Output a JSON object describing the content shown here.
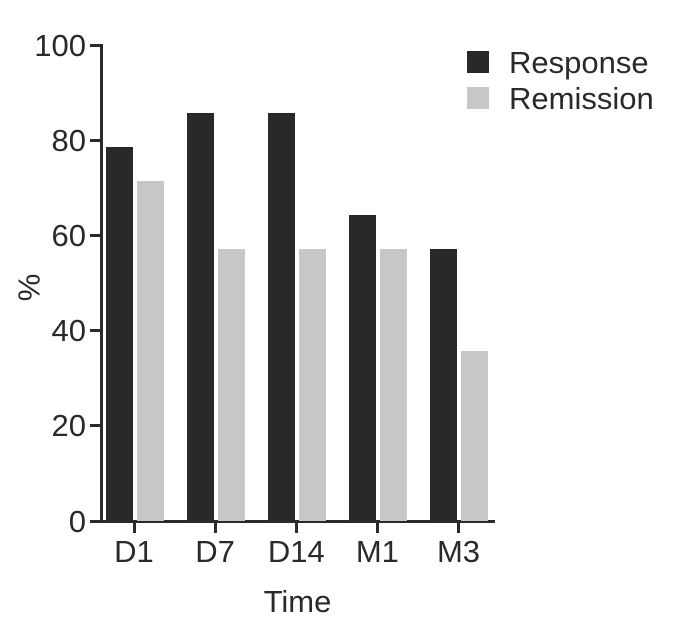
{
  "chart_data": {
    "type": "bar",
    "title": "",
    "xlabel": "Time",
    "ylabel": "%",
    "ylim": [
      0,
      100
    ],
    "yticks": [
      0,
      20,
      40,
      60,
      80,
      100
    ],
    "categories": [
      "D1",
      "D7",
      "D14",
      "M1",
      "M3"
    ],
    "series": [
      {
        "name": "Response",
        "color": "#2a2828",
        "values": [
          78.6,
          85.7,
          85.7,
          64.3,
          57.1
        ]
      },
      {
        "name": "Remission",
        "color": "#c7c6c8",
        "values": [
          71.4,
          57.1,
          57.1,
          57.1,
          35.7
        ]
      }
    ],
    "legend_position": "top-right",
    "grid": false
  },
  "colors": {
    "axis": "#2b2929",
    "text": "#2b2929",
    "background": "#ffffff"
  }
}
